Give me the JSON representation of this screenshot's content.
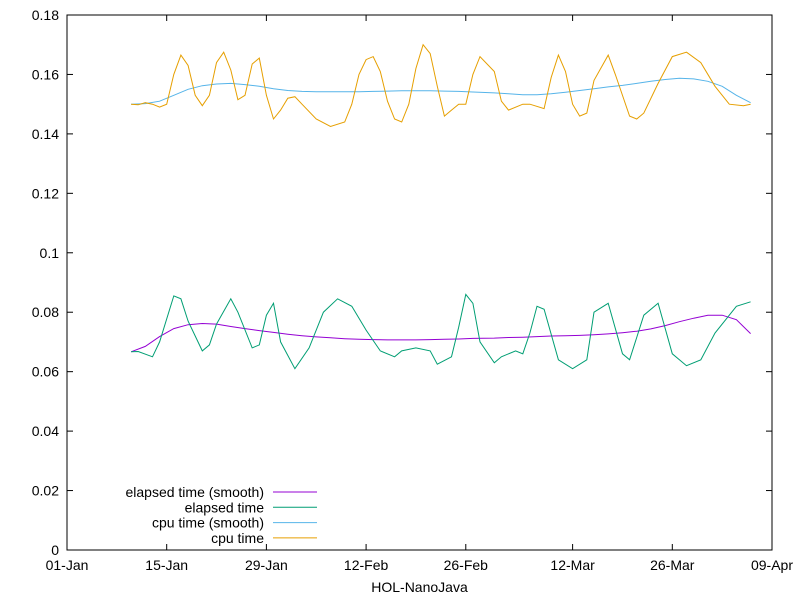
{
  "chart_data": {
    "type": "line",
    "title": "",
    "xlabel": "HOL-NanoJava",
    "ylabel": "",
    "grid": false,
    "legend_position": "bottom-left",
    "xlim": [
      "01-Jan",
      "09-Apr"
    ],
    "ylim": [
      0,
      0.18
    ],
    "x_ticks": [
      "01-Jan",
      "15-Jan",
      "29-Jan",
      "12-Feb",
      "26-Feb",
      "12-Mar",
      "26-Mar",
      "09-Apr"
    ],
    "y_ticks": [
      "0",
      "0.02",
      "0.04",
      "0.06",
      "0.08",
      "0.1",
      "0.12",
      "0.14",
      "0.16",
      "0.18"
    ],
    "series": [
      {
        "name": "elapsed time (smooth)",
        "color": "#9400d3",
        "x": [
          "10-Jan",
          "12-Jan",
          "14-Jan",
          "16-Jan",
          "18-Jan",
          "20-Jan",
          "22-Jan",
          "24-Jan",
          "26-Jan",
          "28-Jan",
          "30-Jan",
          "01-Feb",
          "03-Feb",
          "05-Feb",
          "07-Feb",
          "09-Feb",
          "11-Feb",
          "13-Feb",
          "15-Feb",
          "17-Feb",
          "19-Feb",
          "21-Feb",
          "23-Feb",
          "25-Feb",
          "27-Feb",
          "01-Mar",
          "03-Mar",
          "05-Mar",
          "07-Mar",
          "09-Mar",
          "11-Mar",
          "13-Mar",
          "15-Mar",
          "17-Mar",
          "19-Mar",
          "21-Mar",
          "23-Mar",
          "25-Mar",
          "27-Mar",
          "29-Mar",
          "31-Mar",
          "02-Apr",
          "04-Apr",
          "06-Apr"
        ],
        "values": [
          0.0667,
          0.0685,
          0.0718,
          0.0745,
          0.0758,
          0.0762,
          0.076,
          0.0752,
          0.0745,
          0.0738,
          0.0732,
          0.0726,
          0.0721,
          0.0717,
          0.0714,
          0.0711,
          0.0709,
          0.0708,
          0.0707,
          0.0707,
          0.0707,
          0.0708,
          0.0709,
          0.071,
          0.0712,
          0.0713,
          0.0715,
          0.0716,
          0.0718,
          0.072,
          0.0721,
          0.0722,
          0.0724,
          0.0727,
          0.0731,
          0.0736,
          0.0744,
          0.0755,
          0.0768,
          0.078,
          0.079,
          0.079,
          0.0775,
          0.0728
        ]
      },
      {
        "name": "elapsed time",
        "color": "#009e73",
        "x": [
          "10-Jan",
          "11-Jan",
          "13-Jan",
          "14-Jan",
          "16-Jan",
          "17-Jan",
          "18-Jan",
          "20-Jan",
          "21-Jan",
          "22-Jan",
          "24-Jan",
          "25-Jan",
          "27-Jan",
          "28-Jan",
          "29-Jan",
          "30-Jan",
          "31-Jan",
          "02-Feb",
          "04-Feb",
          "06-Feb",
          "08-Feb",
          "10-Feb",
          "12-Feb",
          "14-Feb",
          "16-Feb",
          "17-Feb",
          "19-Feb",
          "21-Feb",
          "22-Feb",
          "24-Feb",
          "25-Feb",
          "26-Feb",
          "27-Feb",
          "28-Feb",
          "01-Mar",
          "02-Mar",
          "04-Mar",
          "05-Mar",
          "06-Mar",
          "07-Mar",
          "08-Mar",
          "10-Mar",
          "12-Mar",
          "14-Mar",
          "15-Mar",
          "17-Mar",
          "19-Mar",
          "20-Mar",
          "22-Mar",
          "24-Mar",
          "26-Mar",
          "28-Mar",
          "30-Mar",
          "01-Apr",
          "04-Apr",
          "06-Apr"
        ],
        "values": [
          0.0667,
          0.0668,
          0.065,
          0.07,
          0.0855,
          0.0845,
          0.077,
          0.067,
          0.069,
          0.076,
          0.0845,
          0.08,
          0.068,
          0.069,
          0.079,
          0.083,
          0.07,
          0.061,
          0.068,
          0.08,
          0.0845,
          0.082,
          0.074,
          0.067,
          0.065,
          0.067,
          0.068,
          0.067,
          0.0625,
          0.065,
          0.075,
          0.086,
          0.083,
          0.07,
          0.063,
          0.065,
          0.067,
          0.066,
          0.073,
          0.082,
          0.081,
          0.064,
          0.061,
          0.064,
          0.08,
          0.083,
          0.066,
          0.064,
          0.079,
          0.083,
          0.066,
          0.062,
          0.064,
          0.073,
          0.082,
          0.0835
        ]
      },
      {
        "name": "cpu time (smooth)",
        "color": "#56b4e9",
        "x": [
          "10-Jan",
          "12-Jan",
          "14-Jan",
          "16-Jan",
          "18-Jan",
          "20-Jan",
          "22-Jan",
          "24-Jan",
          "26-Jan",
          "28-Jan",
          "30-Jan",
          "01-Feb",
          "03-Feb",
          "05-Feb",
          "07-Feb",
          "09-Feb",
          "11-Feb",
          "13-Feb",
          "15-Feb",
          "17-Feb",
          "19-Feb",
          "21-Feb",
          "23-Feb",
          "25-Feb",
          "27-Feb",
          "01-Mar",
          "03-Mar",
          "05-Mar",
          "07-Mar",
          "09-Mar",
          "11-Mar",
          "13-Mar",
          "15-Mar",
          "17-Mar",
          "19-Mar",
          "21-Mar",
          "23-Mar",
          "25-Mar",
          "27-Mar",
          "29-Mar",
          "31-Mar",
          "02-Apr",
          "04-Apr",
          "06-Apr"
        ],
        "values": [
          0.15,
          0.1502,
          0.151,
          0.153,
          0.155,
          0.1562,
          0.1568,
          0.157,
          0.1566,
          0.156,
          0.1552,
          0.1546,
          0.1543,
          0.1542,
          0.1542,
          0.1542,
          0.1542,
          0.1543,
          0.1544,
          0.1545,
          0.1545,
          0.1545,
          0.1544,
          0.1543,
          0.1541,
          0.1538,
          0.1535,
          0.1532,
          0.1532,
          0.1535,
          0.154,
          0.1546,
          0.1552,
          0.1558,
          0.1563,
          0.157,
          0.1577,
          0.1583,
          0.1587,
          0.1585,
          0.1577,
          0.156,
          0.153,
          0.1505
        ]
      },
      {
        "name": "cpu time",
        "color": "#e69f00",
        "x": [
          "10-Jan",
          "11-Jan",
          "12-Jan",
          "13-Jan",
          "14-Jan",
          "15-Jan",
          "16-Jan",
          "17-Jan",
          "18-Jan",
          "19-Jan",
          "20-Jan",
          "21-Jan",
          "22-Jan",
          "23-Jan",
          "24-Jan",
          "25-Jan",
          "26-Jan",
          "27-Jan",
          "28-Jan",
          "29-Jan",
          "30-Jan",
          "31-Jan",
          "01-Feb",
          "02-Feb",
          "03-Feb",
          "05-Feb",
          "07-Feb",
          "09-Feb",
          "10-Feb",
          "11-Feb",
          "12-Feb",
          "13-Feb",
          "14-Feb",
          "15-Feb",
          "16-Feb",
          "17-Feb",
          "18-Feb",
          "19-Feb",
          "20-Feb",
          "21-Feb",
          "22-Feb",
          "23-Feb",
          "24-Feb",
          "25-Feb",
          "26-Feb",
          "27-Feb",
          "28-Feb",
          "01-Mar",
          "02-Mar",
          "03-Mar",
          "05-Mar",
          "06-Mar",
          "08-Mar",
          "09-Mar",
          "10-Mar",
          "11-Mar",
          "12-Mar",
          "13-Mar",
          "14-Mar",
          "15-Mar",
          "17-Mar",
          "18-Mar",
          "20-Mar",
          "21-Mar",
          "22-Mar",
          "24-Mar",
          "26-Mar",
          "28-Mar",
          "30-Mar",
          "01-Apr",
          "03-Apr",
          "05-Apr",
          "06-Apr"
        ],
        "values": [
          0.15,
          0.1498,
          0.1505,
          0.15,
          0.149,
          0.15,
          0.16,
          0.1665,
          0.163,
          0.153,
          0.1495,
          0.153,
          0.164,
          0.1675,
          0.1615,
          0.1515,
          0.153,
          0.1635,
          0.1655,
          0.153,
          0.145,
          0.148,
          0.152,
          0.1525,
          0.15,
          0.145,
          0.1425,
          0.144,
          0.15,
          0.16,
          0.165,
          0.166,
          0.161,
          0.151,
          0.145,
          0.144,
          0.15,
          0.162,
          0.17,
          0.167,
          0.156,
          0.146,
          0.148,
          0.15,
          0.15,
          0.16,
          0.166,
          0.161,
          0.151,
          0.148,
          0.15,
          0.15,
          0.1485,
          0.159,
          0.1665,
          0.161,
          0.15,
          0.146,
          0.147,
          0.158,
          0.1665,
          0.16,
          0.146,
          0.145,
          0.147,
          0.157,
          0.166,
          0.1675,
          0.164,
          0.156,
          0.15,
          0.1495,
          0.15
        ]
      }
    ]
  }
}
